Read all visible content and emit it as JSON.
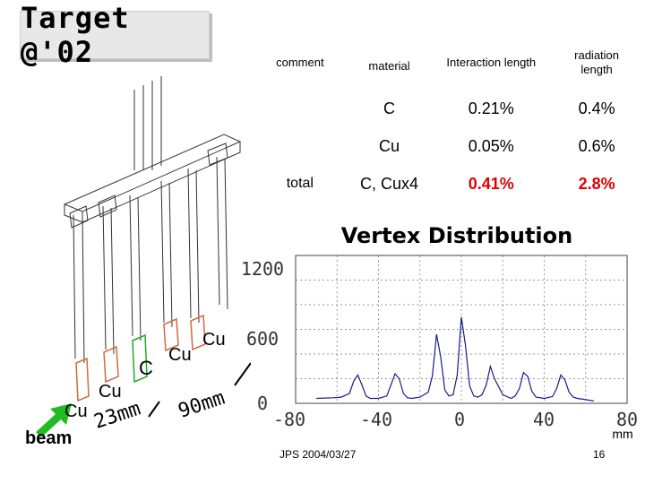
{
  "slide": {
    "title": "Target @'02",
    "footer_left": "JPS 2004/03/27",
    "page_number": "16"
  },
  "table": {
    "headers": [
      "comment",
      "material",
      "Interaction length",
      "radiation length"
    ],
    "rows": [
      {
        "comment": "",
        "material": "C",
        "interaction": "0.21%",
        "radiation": "0.4%"
      },
      {
        "comment": "",
        "material": "Cu",
        "interaction": "0.05%",
        "radiation": "0.6%"
      },
      {
        "comment": "total",
        "material": "C, Cux4",
        "interaction": "0.41%",
        "radiation": "2.8%"
      }
    ],
    "highlight_color": "#e00000"
  },
  "diagram": {
    "beam_label": "beam",
    "beam_arrow_color": "#22bb22",
    "labels": {
      "cu1": "Cu",
      "cu2": "Cu",
      "c": "C",
      "cu3": "Cu",
      "cu4": "Cu",
      "d23": "23mm",
      "d90": "90mm"
    },
    "cu_frame_color": "#d06a40",
    "c_frame_color": "#22aa22"
  },
  "vertex_chart": {
    "title": "Vertex Distribution",
    "y_ticks": [
      "1200",
      "600",
      "0"
    ],
    "x_ticks": [
      "-80",
      "-40",
      "0",
      "40",
      "80"
    ],
    "x_unit": "mm",
    "line_color": "#1a1a8c"
  },
  "chart_data": {
    "type": "line",
    "title": "Vertex Distribution",
    "xlabel": "mm",
    "ylabel": "",
    "xlim": [
      -80,
      80
    ],
    "ylim": [
      0,
      1200
    ],
    "grid": true,
    "series": [
      {
        "x": [
          -70,
          -62,
          -58,
          -54,
          -52,
          -50,
          -48,
          -46,
          -44,
          -40,
          -36,
          -34,
          -32,
          -30,
          -28,
          -26,
          -24,
          -20,
          -16,
          -14,
          -12,
          -10,
          -8,
          -6,
          -4,
          -2,
          0,
          2,
          4,
          6,
          8,
          10,
          12,
          14,
          16,
          20,
          24,
          26,
          28,
          30,
          32,
          34,
          36,
          40,
          44,
          46,
          48,
          50,
          52,
          54,
          56,
          60,
          64
        ],
        "y": [
          40,
          45,
          50,
          80,
          180,
          230,
          150,
          60,
          40,
          40,
          60,
          150,
          240,
          200,
          80,
          45,
          40,
          50,
          90,
          220,
          560,
          380,
          110,
          60,
          70,
          230,
          700,
          470,
          140,
          60,
          50,
          70,
          150,
          300,
          200,
          70,
          40,
          60,
          120,
          250,
          220,
          100,
          50,
          40,
          55,
          120,
          230,
          190,
          90,
          50,
          40,
          30,
          20
        ]
      }
    ]
  }
}
